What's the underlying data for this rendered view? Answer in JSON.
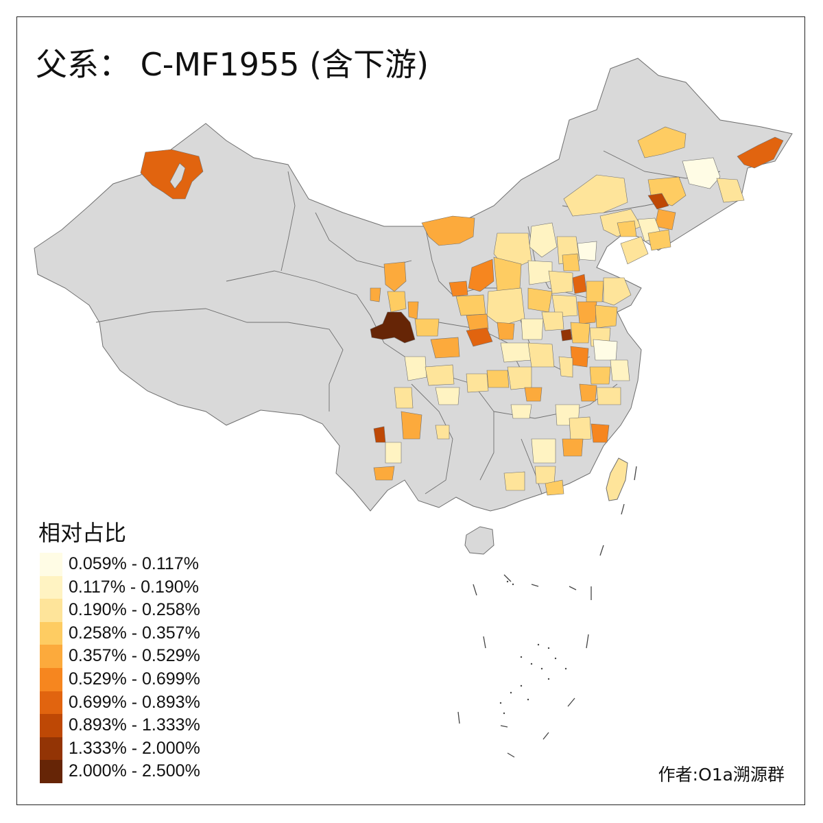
{
  "title": "父系： C-MF1955 (含下游)",
  "legend": {
    "title": "相对占比",
    "items": [
      {
        "label": "0.059% - 0.117%",
        "color": "#FFFCE5"
      },
      {
        "label": "0.117% - 0.190%",
        "color": "#FFF3C2"
      },
      {
        "label": "0.190% - 0.258%",
        "color": "#FEE49A"
      },
      {
        "label": "0.258% - 0.357%",
        "color": "#FECC62"
      },
      {
        "label": "0.357% - 0.529%",
        "color": "#FCAA3C"
      },
      {
        "label": "0.529% - 0.699%",
        "color": "#F6861F"
      },
      {
        "label": "0.699% - 0.893%",
        "color": "#E1640F"
      },
      {
        "label": "0.893% - 1.333%",
        "color": "#BE4805"
      },
      {
        "label": "1.333% - 2.000%",
        "color": "#933405"
      },
      {
        "label": "2.000% - 2.500%",
        "color": "#662506"
      }
    ]
  },
  "credit": "作者:O1a溯源群",
  "colors": {
    "land": "#D9D9D9",
    "border": "#6E6E6E",
    "frame": "#222222",
    "background": "#FFFFFF"
  }
}
